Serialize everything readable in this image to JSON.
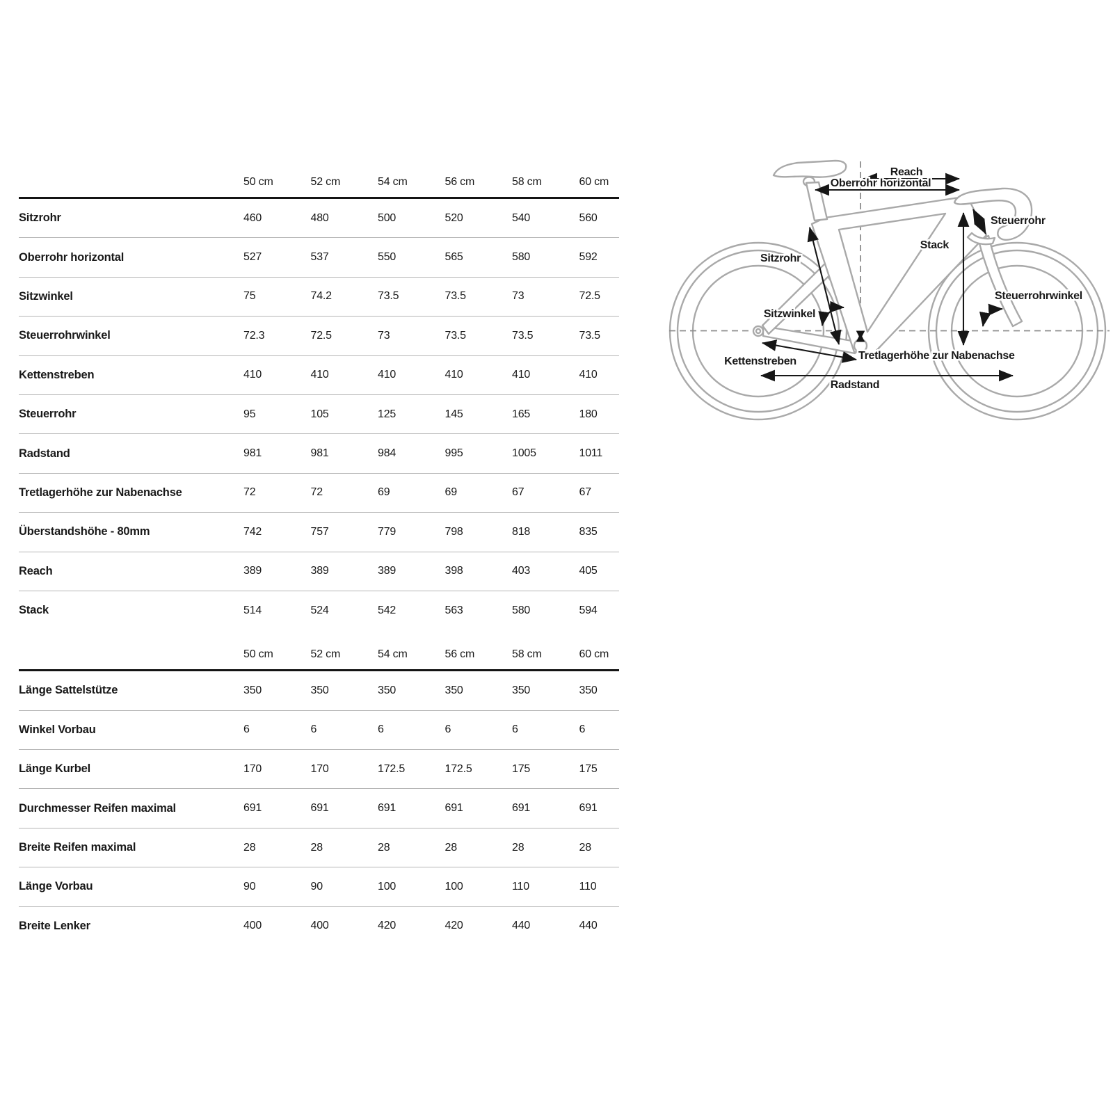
{
  "table": {
    "sizes": [
      "50 cm",
      "52 cm",
      "54 cm",
      "56 cm",
      "58 cm",
      "60 cm"
    ],
    "frame_rows": [
      {
        "label": "Sitzrohr",
        "values": [
          "460",
          "480",
          "500",
          "520",
          "540",
          "560"
        ]
      },
      {
        "label": "Oberrohr horizontal",
        "values": [
          "527",
          "537",
          "550",
          "565",
          "580",
          "592"
        ]
      },
      {
        "label": "Sitzwinkel",
        "values": [
          "75",
          "74.2",
          "73.5",
          "73.5",
          "73",
          "72.5"
        ]
      },
      {
        "label": "Steuerrohrwinkel",
        "values": [
          "72.3",
          "72.5",
          "73",
          "73.5",
          "73.5",
          "73.5"
        ]
      },
      {
        "label": "Kettenstreben",
        "values": [
          "410",
          "410",
          "410",
          "410",
          "410",
          "410"
        ]
      },
      {
        "label": "Steuerrohr",
        "values": [
          "95",
          "105",
          "125",
          "145",
          "165",
          "180"
        ]
      },
      {
        "label": "Radstand",
        "values": [
          "981",
          "981",
          "984",
          "995",
          "1005",
          "1011"
        ]
      },
      {
        "label": "Tretlagerhöhe zur Nabenachse",
        "values": [
          "72",
          "72",
          "69",
          "69",
          "67",
          "67"
        ]
      },
      {
        "label": "Überstandshöhe - 80mm",
        "values": [
          "742",
          "757",
          "779",
          "798",
          "818",
          "835"
        ]
      },
      {
        "label": "Reach",
        "values": [
          "389",
          "389",
          "389",
          "398",
          "403",
          "405"
        ]
      },
      {
        "label": "Stack",
        "values": [
          "514",
          "524",
          "542",
          "563",
          "580",
          "594"
        ]
      }
    ],
    "component_rows": [
      {
        "label": "Länge Sattelstütze",
        "values": [
          "350",
          "350",
          "350",
          "350",
          "350",
          "350"
        ]
      },
      {
        "label": "Winkel Vorbau",
        "values": [
          "6",
          "6",
          "6",
          "6",
          "6",
          "6"
        ]
      },
      {
        "label": "Länge Kurbel",
        "values": [
          "170",
          "170",
          "172.5",
          "172.5",
          "175",
          "175"
        ]
      },
      {
        "label": "Durchmesser Reifen maximal",
        "values": [
          "691",
          "691",
          "691",
          "691",
          "691",
          "691"
        ]
      },
      {
        "label": "Breite Reifen maximal",
        "values": [
          "28",
          "28",
          "28",
          "28",
          "28",
          "28"
        ]
      },
      {
        "label": "Länge Vorbau",
        "values": [
          "90",
          "90",
          "100",
          "100",
          "110",
          "110"
        ]
      },
      {
        "label": "Breite Lenker",
        "values": [
          "400",
          "400",
          "420",
          "420",
          "440",
          "440"
        ]
      }
    ]
  },
  "diagram": {
    "labels": {
      "reach": "Reach",
      "oberrohr": "Oberrohr horizontal",
      "steuerrohr": "Steuerrohr",
      "stack": "Stack",
      "sitzrohr": "Sitzrohr",
      "steuerrohrwinkel": "Steuerrohrwinkel",
      "sitzwinkel": "Sitzwinkel",
      "kettenstreben": "Kettenstreben",
      "tretlager": "Tretlagerhöhe zur Nabenachse",
      "radstand": "Radstand"
    }
  },
  "colors": {
    "text": "#191919",
    "row_separator": "#b5b5b5",
    "header_rule": "#141414",
    "bike_outline": "#a9a9a9",
    "dashed_line": "#8c8c8c"
  }
}
